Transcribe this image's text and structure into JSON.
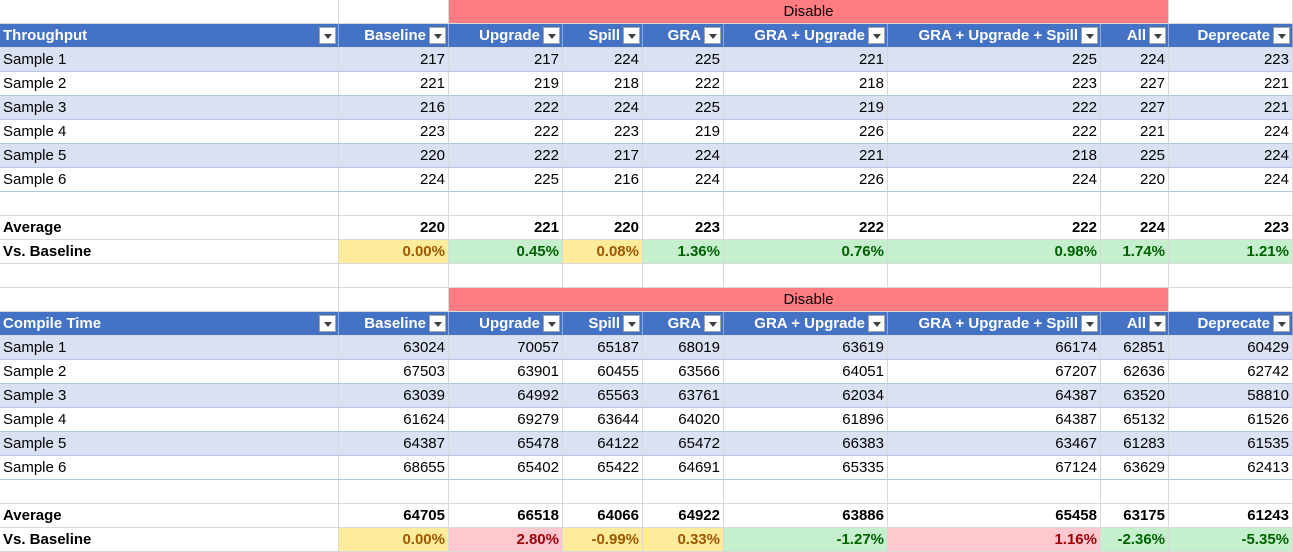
{
  "columns": [
    "Baseline",
    "Upgrade",
    "Spill",
    "GRA",
    "GRA + Upgrade",
    "GRA + Upgrade + Spill",
    "All",
    "Deprecate"
  ],
  "group_label": "Disable",
  "average_label": "Average",
  "vs_label": "Vs. Baseline",
  "colors": {
    "header_blue": "#4472c4",
    "band": "#d9e1f2",
    "disable": "#ff7c80",
    "neutral": "#ffeb9c",
    "good": "#c6efce",
    "bad": "#ffc7ce"
  },
  "tables": [
    {
      "title": "Throughput",
      "rows": [
        {
          "label": "Sample 1",
          "values": [
            "217",
            "217",
            "224",
            "225",
            "221",
            "225",
            "224",
            "223"
          ]
        },
        {
          "label": "Sample 2",
          "values": [
            "221",
            "219",
            "218",
            "222",
            "218",
            "223",
            "227",
            "221"
          ]
        },
        {
          "label": "Sample 3",
          "values": [
            "216",
            "222",
            "224",
            "225",
            "219",
            "222",
            "227",
            "221"
          ]
        },
        {
          "label": "Sample 4",
          "values": [
            "223",
            "222",
            "223",
            "219",
            "226",
            "222",
            "221",
            "224"
          ]
        },
        {
          "label": "Sample 5",
          "values": [
            "220",
            "222",
            "217",
            "224",
            "221",
            "218",
            "225",
            "224"
          ]
        },
        {
          "label": "Sample 6",
          "values": [
            "224",
            "225",
            "216",
            "224",
            "226",
            "224",
            "220",
            "224"
          ]
        }
      ],
      "average": [
        "220",
        "221",
        "220",
        "223",
        "222",
        "222",
        "224",
        "223"
      ],
      "vs": [
        {
          "text": "0.00%",
          "tone": "neutral"
        },
        {
          "text": "0.45%",
          "tone": "good"
        },
        {
          "text": "0.08%",
          "tone": "neutral"
        },
        {
          "text": "1.36%",
          "tone": "good"
        },
        {
          "text": "0.76%",
          "tone": "good"
        },
        {
          "text": "0.98%",
          "tone": "good"
        },
        {
          "text": "1.74%",
          "tone": "good"
        },
        {
          "text": "1.21%",
          "tone": "good"
        }
      ]
    },
    {
      "title": "Compile Time",
      "rows": [
        {
          "label": "Sample 1",
          "values": [
            "63024",
            "70057",
            "65187",
            "68019",
            "63619",
            "66174",
            "62851",
            "60429"
          ]
        },
        {
          "label": "Sample 2",
          "values": [
            "67503",
            "63901",
            "60455",
            "63566",
            "64051",
            "67207",
            "62636",
            "62742"
          ]
        },
        {
          "label": "Sample 3",
          "values": [
            "63039",
            "64992",
            "65563",
            "63761",
            "62034",
            "64387",
            "63520",
            "58810"
          ]
        },
        {
          "label": "Sample 4",
          "values": [
            "61624",
            "69279",
            "63644",
            "64020",
            "61896",
            "64387",
            "65132",
            "61526"
          ]
        },
        {
          "label": "Sample 5",
          "values": [
            "64387",
            "65478",
            "64122",
            "65472",
            "66383",
            "63467",
            "61283",
            "61535"
          ]
        },
        {
          "label": "Sample 6",
          "values": [
            "68655",
            "65402",
            "65422",
            "64691",
            "65335",
            "67124",
            "63629",
            "62413"
          ]
        }
      ],
      "average": [
        "64705",
        "66518",
        "64066",
        "64922",
        "63886",
        "65458",
        "63175",
        "61243"
      ],
      "vs": [
        {
          "text": "0.00%",
          "tone": "neutral"
        },
        {
          "text": "2.80%",
          "tone": "bad"
        },
        {
          "text": "-0.99%",
          "tone": "neutral"
        },
        {
          "text": "0.33%",
          "tone": "neutral"
        },
        {
          "text": "-1.27%",
          "tone": "good"
        },
        {
          "text": "1.16%",
          "tone": "bad"
        },
        {
          "text": "-2.36%",
          "tone": "good"
        },
        {
          "text": "-5.35%",
          "tone": "good"
        }
      ]
    }
  ]
}
